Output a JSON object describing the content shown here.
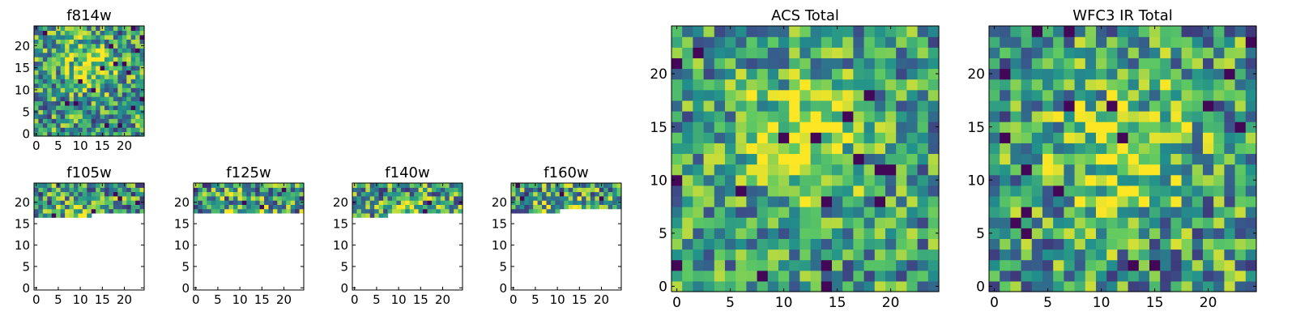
{
  "figure": {
    "colormap": "viridis",
    "colormap_stops": [
      "#440154",
      "#3b528b",
      "#21918c",
      "#5ec962",
      "#fde725"
    ],
    "frame_color": "#000000",
    "background": "#ffffff"
  },
  "chart_data": [
    {
      "type": "heatmap",
      "id": "f814w",
      "title": "f814w",
      "grid_size": [
        25,
        25
      ],
      "rows_with_data": [
        0,
        24
      ],
      "xlim": [
        0,
        25
      ],
      "ylim": [
        0,
        25
      ],
      "xticks": [
        "0",
        "5",
        "10",
        "15",
        "20"
      ],
      "yticks": [
        "0",
        "5",
        "10",
        "15",
        "20"
      ],
      "value_range": [
        0,
        1
      ],
      "seed": 11,
      "center_peak": [
        12,
        15
      ],
      "peak_strength": 0.35,
      "noise": 0.55
    },
    {
      "type": "heatmap",
      "id": "f105w",
      "title": "f105w",
      "grid_size": [
        25,
        25
      ],
      "rows_with_data": [
        17,
        24
      ],
      "partial_bottom_row": {
        "row": 17,
        "cols": [
          0,
          12
        ]
      },
      "xlim": [
        0,
        25
      ],
      "ylim": [
        0,
        25
      ],
      "xticks": [
        "0",
        "5",
        "10",
        "15",
        "20"
      ],
      "yticks": [
        "0",
        "5",
        "10",
        "15",
        "20"
      ],
      "value_range": [
        0,
        1
      ],
      "seed": 23,
      "center_peak": [
        12,
        15
      ],
      "peak_strength": 0.25,
      "noise": 0.6
    },
    {
      "type": "heatmap",
      "id": "f125w",
      "title": "f125w",
      "grid_size": [
        25,
        25
      ],
      "rows_with_data": [
        18,
        24
      ],
      "xlim": [
        0,
        25
      ],
      "ylim": [
        0,
        25
      ],
      "xticks": [
        "0",
        "5",
        "10",
        "15",
        "20"
      ],
      "yticks": [
        "20",
        "15",
        "10",
        "5",
        "0"
      ],
      "value_range": [
        0,
        1
      ],
      "seed": 37,
      "center_peak": [
        12,
        15
      ],
      "peak_strength": 0.25,
      "noise": 0.6
    },
    {
      "type": "heatmap",
      "id": "f140w",
      "title": "f140w",
      "grid_size": [
        25,
        25
      ],
      "rows_with_data": [
        17,
        24
      ],
      "partial_bottom_row": {
        "row": 17,
        "cols": [
          0,
          7
        ]
      },
      "xlim": [
        0,
        25
      ],
      "ylim": [
        0,
        25
      ],
      "xticks": [
        "0",
        "5",
        "10",
        "15",
        "20"
      ],
      "yticks": [
        "20",
        "15",
        "10",
        "5",
        "0"
      ],
      "value_range": [
        0,
        1
      ],
      "seed": 41,
      "center_peak": [
        12,
        15
      ],
      "peak_strength": 0.25,
      "noise": 0.6
    },
    {
      "type": "heatmap",
      "id": "f160w",
      "title": "f160w",
      "grid_size": [
        25,
        25
      ],
      "rows_with_data": [
        18,
        24
      ],
      "partial_bottom_row": {
        "row": 18,
        "cols": [
          0,
          10
        ]
      },
      "xlim": [
        0,
        25
      ],
      "ylim": [
        0,
        25
      ],
      "xticks": [
        "0",
        "5",
        "10",
        "15",
        "20"
      ],
      "yticks": [
        "20",
        "15",
        "10",
        "5",
        "0"
      ],
      "value_range": [
        0,
        1
      ],
      "seed": 53,
      "center_peak": [
        12,
        15
      ],
      "peak_strength": 0.25,
      "noise": 0.6
    },
    {
      "type": "heatmap",
      "id": "acs-total",
      "title": "ACS Total",
      "grid_size": [
        25,
        25
      ],
      "rows_with_data": [
        0,
        24
      ],
      "xlim": [
        0,
        25
      ],
      "ylim": [
        0,
        25
      ],
      "xticks": [
        "0",
        "5",
        "10",
        "15",
        "20"
      ],
      "yticks": [
        "0",
        "5",
        "10",
        "15",
        "20"
      ],
      "value_range": [
        0,
        1
      ],
      "seed": 67,
      "center_peak": [
        12,
        14
      ],
      "peak_strength": 0.4,
      "noise": 0.5
    },
    {
      "type": "heatmap",
      "id": "wfc3-ir-total",
      "title": "WFC3 IR Total",
      "grid_size": [
        25,
        25
      ],
      "rows_with_data": [
        0,
        24
      ],
      "xlim": [
        0,
        25
      ],
      "ylim": [
        0,
        25
      ],
      "xticks": [
        "0",
        "5",
        "10",
        "15",
        "20"
      ],
      "yticks": [
        "0",
        "5",
        "10",
        "15",
        "20"
      ],
      "value_range": [
        0,
        1
      ],
      "seed": 79,
      "center_peak": [
        12,
        13
      ],
      "peak_strength": 0.35,
      "noise": 0.55
    }
  ]
}
